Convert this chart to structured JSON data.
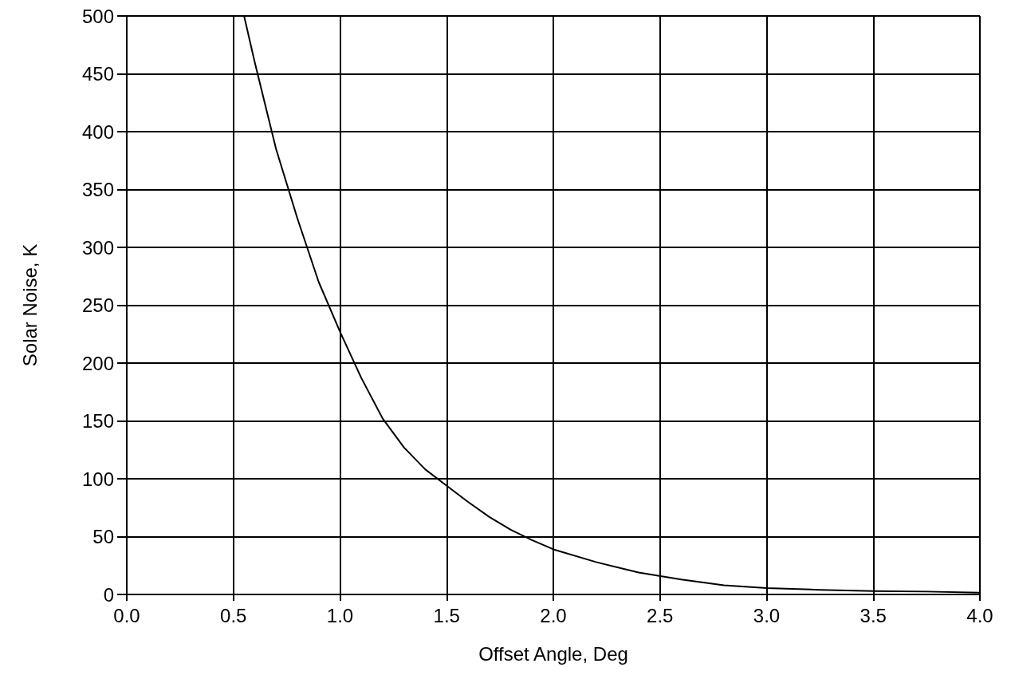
{
  "chart_data": {
    "type": "line",
    "xlabel": "Offset Angle, Deg",
    "ylabel": "Solar Noise, K",
    "x": [
      0.55,
      0.6,
      0.7,
      0.8,
      0.9,
      1.0,
      1.1,
      1.2,
      1.3,
      1.4,
      1.5,
      1.6,
      1.7,
      1.8,
      1.9,
      2.0,
      2.2,
      2.4,
      2.6,
      2.8,
      3.0,
      3.25,
      3.5,
      3.75,
      4.0
    ],
    "series": [
      {
        "color": "#000000",
        "values": [
          500,
          460,
          385,
          325,
          270,
          227,
          187,
          152,
          127,
          108,
          94,
          80,
          67,
          56,
          47,
          39,
          28,
          19,
          13,
          8,
          5.5,
          4,
          3,
          2.5,
          1.5
        ]
      }
    ],
    "xlim": [
      0,
      4
    ],
    "xticks": [
      {
        "value": 0,
        "label": "0.0"
      },
      {
        "value": 0.5,
        "label": "0.5"
      },
      {
        "value": 1,
        "label": "1.0"
      },
      {
        "value": 1.5,
        "label": "1.5"
      },
      {
        "value": 2,
        "label": "2.0"
      },
      {
        "value": 2.5,
        "label": "2.5"
      },
      {
        "value": 3,
        "label": "3.0"
      },
      {
        "value": 3.5,
        "label": "3.5"
      },
      {
        "value": 4,
        "label": "4.0"
      }
    ],
    "ylim": [
      0,
      500
    ],
    "yticks": [
      0,
      50,
      100,
      150,
      200,
      250,
      300,
      350,
      400,
      450,
      500
    ],
    "grid": true,
    "marker": "none",
    "line_style": "solid"
  }
}
